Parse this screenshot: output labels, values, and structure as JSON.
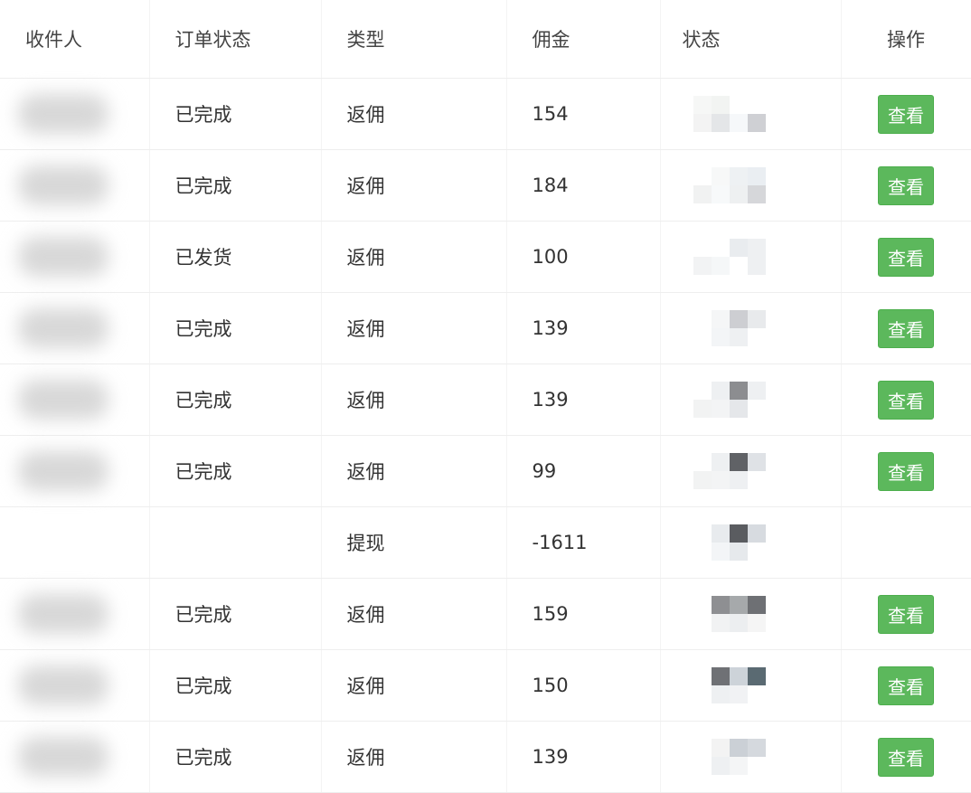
{
  "table": {
    "headers": [
      "收件人",
      "订单状态",
      "类型",
      "佣金",
      "状态",
      "操作"
    ],
    "rows": [
      {
        "order_status": "已完成",
        "type": "返佣",
        "commission": "154",
        "has_action": true
      },
      {
        "order_status": "已完成",
        "type": "返佣",
        "commission": "184",
        "has_action": true
      },
      {
        "order_status": "已发货",
        "type": "返佣",
        "commission": "100",
        "has_action": true
      },
      {
        "order_status": "已完成",
        "type": "返佣",
        "commission": "139",
        "has_action": true
      },
      {
        "order_status": "已完成",
        "type": "返佣",
        "commission": "139",
        "has_action": true
      },
      {
        "order_status": "已完成",
        "type": "返佣",
        "commission": "99",
        "has_action": true
      },
      {
        "order_status": "",
        "type": "提现",
        "commission": "-1611",
        "has_action": false
      },
      {
        "order_status": "已完成",
        "type": "返佣",
        "commission": "159",
        "has_action": true
      },
      {
        "order_status": "已完成",
        "type": "返佣",
        "commission": "150",
        "has_action": true
      },
      {
        "order_status": "已完成",
        "type": "返佣",
        "commission": "139",
        "has_action": true
      }
    ],
    "action_label": "查看"
  },
  "colors": {
    "button": "#5cb85c"
  }
}
